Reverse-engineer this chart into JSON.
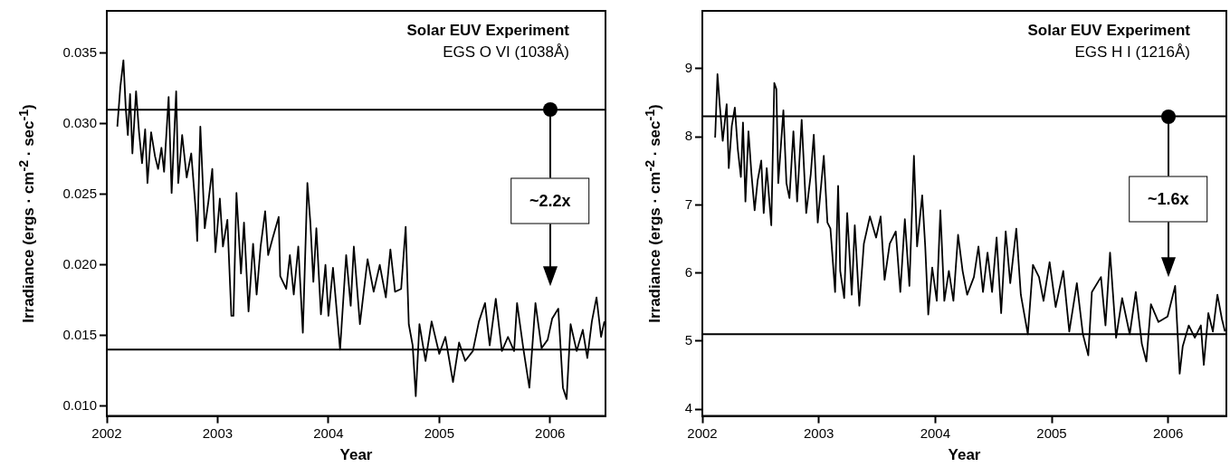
{
  "chart_data": [
    {
      "type": "line",
      "title": "Solar EUV Experiment",
      "subtitle": "EGS O VI (1038Å)",
      "xlabel": "Year",
      "ylabel": "Irradiance (ergs · cm$^{-2}$ · sec$^{-1}$)",
      "annotations": [
        "~2.2x"
      ],
      "xlim": [
        2002,
        2006.5
      ],
      "ylim": [
        0.0093,
        0.038
      ],
      "xticks": [
        2002,
        2003,
        2004,
        2005,
        2006
      ],
      "yticks": [
        {
          "value": 0.01,
          "label": "0.010"
        },
        0.015,
        {
          "value": 0.02,
          "label": "0.020"
        },
        0.025,
        {
          "value": 0.03,
          "label": "0.030"
        },
        0.035
      ],
      "ref_lines": [
        {
          "axis": "y",
          "value": 0.031
        },
        {
          "axis": "y",
          "value": 0.014
        }
      ],
      "series": [
        {
          "color": "#000000",
          "x": [
            2002.095,
            2002.122,
            2002.15,
            2002.171,
            2002.19,
            2002.21,
            2002.231,
            2002.264,
            2002.291,
            2002.318,
            2002.346,
            2002.367,
            2002.4,
            2002.435,
            2002.463,
            2002.493,
            2002.517,
            2002.558,
            2002.585,
            2002.626,
            2002.645,
            2002.68,
            2002.721,
            2002.762,
            2002.803,
            2002.816,
            2002.844,
            2002.884,
            2002.917,
            2002.952,
            2002.98,
            2003.02,
            2003.048,
            2003.088,
            2003.124,
            2003.143,
            2003.17,
            2003.211,
            2003.238,
            2003.279,
            2003.32,
            2003.352,
            2003.388,
            2003.429,
            2003.456,
            2003.497,
            2003.551,
            2003.565,
            2003.619,
            2003.652,
            2003.687,
            2003.728,
            2003.769,
            2003.81,
            2003.837,
            2003.864,
            2003.891,
            2003.932,
            2003.973,
            2004.0,
            2004.041,
            2004.105,
            2004.16,
            2004.201,
            2004.229,
            2004.284,
            2004.353,
            2004.408,
            2004.463,
            2004.518,
            2004.559,
            2004.601,
            2004.656,
            2004.697,
            2004.725,
            2004.76,
            2004.788,
            2004.821,
            2004.876,
            2004.931,
            2005.0,
            2005.055,
            2005.124,
            2005.179,
            2005.234,
            2005.303,
            2005.358,
            2005.413,
            2005.455,
            2005.51,
            2005.565,
            2005.62,
            2005.675,
            2005.702,
            2005.758,
            2005.813,
            2005.868,
            2005.923,
            2005.978,
            2006.019,
            2006.074,
            2006.116,
            2006.149,
            2006.185,
            2006.24,
            2006.295,
            2006.336,
            2006.377,
            2006.419,
            2006.46,
            2006.49
          ],
          "values": [
            0.0298,
            0.0326,
            0.0345,
            0.0311,
            0.0292,
            0.0321,
            0.0279,
            0.0323,
            0.0294,
            0.0272,
            0.0296,
            0.0258,
            0.0294,
            0.0277,
            0.0268,
            0.0283,
            0.0266,
            0.0319,
            0.0251,
            0.0323,
            0.0258,
            0.0292,
            0.0262,
            0.0279,
            0.0238,
            0.0217,
            0.0298,
            0.0226,
            0.0245,
            0.0268,
            0.0209,
            0.0247,
            0.0213,
            0.0232,
            0.0164,
            0.0164,
            0.0251,
            0.0194,
            0.023,
            0.0167,
            0.0215,
            0.0179,
            0.0213,
            0.0238,
            0.0207,
            0.0219,
            0.0234,
            0.0192,
            0.0183,
            0.0207,
            0.0179,
            0.0213,
            0.0152,
            0.0258,
            0.023,
            0.0188,
            0.0226,
            0.0165,
            0.02,
            0.0164,
            0.0198,
            0.014,
            0.0207,
            0.0171,
            0.0213,
            0.0158,
            0.0204,
            0.0181,
            0.02,
            0.0177,
            0.0211,
            0.0181,
            0.0183,
            0.0227,
            0.0158,
            0.0143,
            0.0107,
            0.0158,
            0.0132,
            0.016,
            0.0137,
            0.0149,
            0.0117,
            0.0145,
            0.0132,
            0.0139,
            0.016,
            0.0173,
            0.0143,
            0.0176,
            0.0139,
            0.0149,
            0.0139,
            0.0173,
            0.0141,
            0.0113,
            0.0173,
            0.0141,
            0.0147,
            0.0162,
            0.0169,
            0.0113,
            0.0105,
            0.0158,
            0.0139,
            0.0154,
            0.0134,
            0.016,
            0.0177,
            0.0149,
            0.016
          ]
        }
      ]
    },
    {
      "type": "line",
      "title": "Solar EUV Experiment",
      "subtitle": "EGS H I (1216Å)",
      "xlabel": "Year",
      "ylabel": "Irradiance (ergs · cm$^{-2}$ · sec$^{-1}$)",
      "annotations": [
        "~1.6x"
      ],
      "xlim": [
        2002,
        2006.5
      ],
      "ylim": [
        3.9,
        9.85
      ],
      "xticks": [
        2002,
        2003,
        2004,
        2005,
        2006
      ],
      "yticks": [
        4,
        5,
        6,
        7,
        8,
        9
      ],
      "ref_lines": [
        {
          "axis": "y",
          "value": 8.3
        },
        {
          "axis": "y",
          "value": 5.1
        }
      ],
      "series": [
        {
          "color": "#000000",
          "x": [
            2002.11,
            2002.13,
            2002.149,
            2002.175,
            2002.209,
            2002.227,
            2002.253,
            2002.279,
            2002.305,
            2002.331,
            2002.349,
            2002.37,
            2002.396,
            2002.422,
            2002.449,
            2002.475,
            2002.506,
            2002.527,
            2002.553,
            2002.592,
            2002.618,
            2002.636,
            2002.652,
            2002.696,
            2002.722,
            2002.748,
            2002.782,
            2002.814,
            2002.853,
            2002.892,
            2002.931,
            2002.957,
            2002.991,
            2003.043,
            2003.074,
            2003.1,
            2003.14,
            2003.166,
            2003.184,
            2003.218,
            2003.244,
            2003.283,
            2003.309,
            2003.348,
            2003.387,
            2003.439,
            2003.492,
            2003.531,
            2003.565,
            2003.609,
            2003.661,
            2003.7,
            2003.739,
            2003.778,
            2003.817,
            2003.844,
            2003.888,
            2003.914,
            2003.94,
            2003.974,
            2004.013,
            2004.044,
            2004.078,
            2004.117,
            2004.156,
            2004.196,
            2004.235,
            2004.274,
            2004.332,
            2004.371,
            2004.41,
            2004.449,
            2004.488,
            2004.527,
            2004.566,
            2004.605,
            2004.644,
            2004.696,
            2004.735,
            2004.795,
            2004.839,
            2004.891,
            2004.93,
            2004.982,
            2005.034,
            2005.099,
            2005.151,
            2005.216,
            2005.268,
            2005.314,
            2005.345,
            2005.423,
            2005.462,
            2005.501,
            2005.553,
            2005.605,
            2005.67,
            2005.722,
            2005.774,
            2005.813,
            2005.852,
            2005.917,
            2005.995,
            2006.06,
            2006.099,
            2006.125,
            2006.177,
            2006.229,
            2006.281,
            2006.306,
            2006.345,
            2006.384,
            2006.423,
            2006.462,
            2006.488
          ],
          "values": [
            7.99,
            8.92,
            8.48,
            7.94,
            8.48,
            7.54,
            8.16,
            8.43,
            7.81,
            7.41,
            8.21,
            7.05,
            8.08,
            7.45,
            6.92,
            7.36,
            7.65,
            6.88,
            7.54,
            6.7,
            8.79,
            8.7,
            7.32,
            8.39,
            7.32,
            7.1,
            8.08,
            7.05,
            8.25,
            6.88,
            7.45,
            8.03,
            6.74,
            7.72,
            6.74,
            6.65,
            5.72,
            7.28,
            6.03,
            5.63,
            6.88,
            5.68,
            6.7,
            5.52,
            6.43,
            6.83,
            6.52,
            6.83,
            5.9,
            6.43,
            6.61,
            5.72,
            6.79,
            5.81,
            7.72,
            6.39,
            7.14,
            6.39,
            5.39,
            6.08,
            5.59,
            6.92,
            5.59,
            6.03,
            5.59,
            6.56,
            6.03,
            5.68,
            5.94,
            6.39,
            5.72,
            6.3,
            5.72,
            6.52,
            5.41,
            6.61,
            5.85,
            6.65,
            5.68,
            5.1,
            6.12,
            5.94,
            5.59,
            6.16,
            5.5,
            6.03,
            5.14,
            5.85,
            5.1,
            4.79,
            5.72,
            5.94,
            5.23,
            6.3,
            5.05,
            5.63,
            5.1,
            5.72,
            4.96,
            4.7,
            5.54,
            5.28,
            5.36,
            5.81,
            4.52,
            4.92,
            5.23,
            5.05,
            5.23,
            4.65,
            5.41,
            5.14,
            5.68,
            5.32,
            5.14
          ]
        }
      ]
    }
  ]
}
